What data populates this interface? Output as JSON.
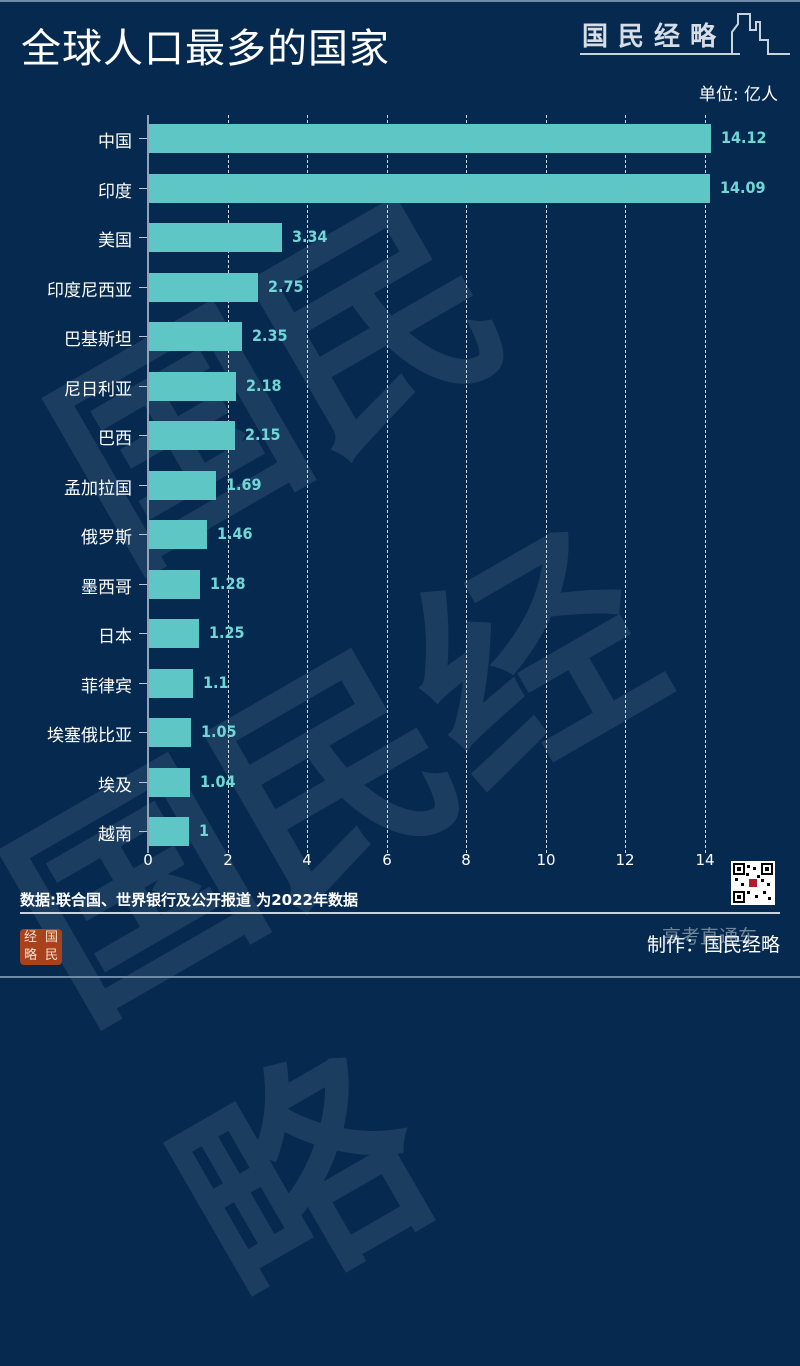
{
  "header": {
    "title": "全球人口最多的国家",
    "brand": "国民经略",
    "unit_label": "单位: 亿人"
  },
  "footer": {
    "source": "数据:联合国、世界银行及公开报道  为2022年数据",
    "maker": "制作：国民经略",
    "overlay_watermark": "高考直通车",
    "seal": [
      "经",
      "国",
      "略",
      "民"
    ]
  },
  "colors": {
    "background": "#062a4f",
    "bar": "#5fc6c6",
    "value_label": "#6fd8d6",
    "text": "#ffffff"
  },
  "chart_data": {
    "type": "bar",
    "orientation": "horizontal",
    "title": "全球人口最多的国家",
    "xlabel": "",
    "ylabel": "",
    "unit": "亿人",
    "categories": [
      "中国",
      "印度",
      "美国",
      "印度尼西亚",
      "巴基斯坦",
      "尼日利亚",
      "巴西",
      "孟加拉国",
      "俄罗斯",
      "墨西哥",
      "日本",
      "菲律宾",
      "埃塞俄比亚",
      "埃及",
      "越南"
    ],
    "values": [
      14.12,
      14.09,
      3.34,
      2.75,
      2.35,
      2.18,
      2.15,
      1.69,
      1.46,
      1.28,
      1.25,
      1.1,
      1.05,
      1.04,
      1
    ],
    "value_labels": [
      "14.12",
      "14.09",
      "3.34",
      "2.75",
      "2.35",
      "2.18",
      "2.15",
      "1.69",
      "1.46",
      "1.28",
      "1.25",
      "1.1",
      "1.05",
      "1.04",
      "1"
    ],
    "xlim": [
      0,
      14
    ],
    "x_ticks": [
      "0",
      "2",
      "4",
      "6",
      "8",
      "10",
      "12",
      "14"
    ],
    "grid": "vertical dashed",
    "legend": "none",
    "source": "数据:联合国、世界银行及公开报道  为2022年数据"
  }
}
